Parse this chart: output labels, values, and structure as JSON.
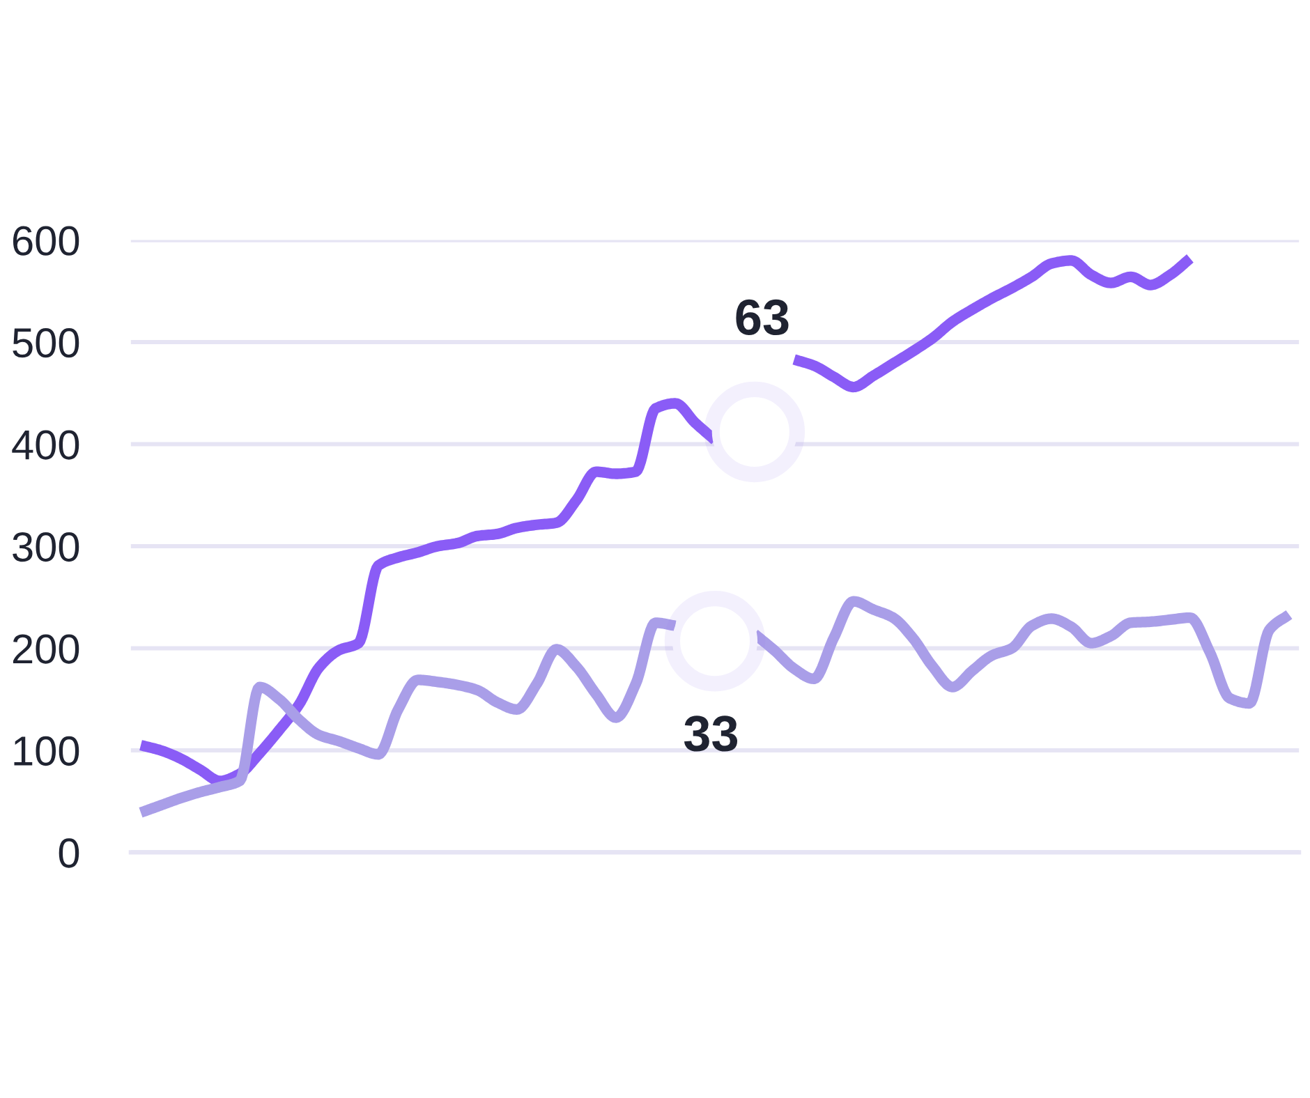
{
  "chart_data": {
    "type": "line",
    "tick_labels": "y",
    "grid": "y",
    "line_style": "solid",
    "ylim": [
      0,
      600
    ],
    "yticks": [
      0,
      100,
      200,
      300,
      400,
      500,
      600
    ],
    "categories": [
      null,
      null,
      null,
      null,
      null,
      null,
      null,
      null,
      null,
      null,
      null,
      null,
      null,
      null,
      null,
      null,
      null,
      null,
      null,
      null,
      null,
      null,
      null,
      null,
      null,
      null,
      null,
      null,
      null,
      null,
      null,
      null,
      null,
      null,
      null,
      null,
      null,
      null,
      null,
      null,
      null,
      null,
      null,
      null,
      null,
      null,
      null,
      null,
      null,
      null,
      null,
      null,
      null,
      null,
      null,
      null,
      null,
      null,
      null
    ],
    "annotations": [
      "63",
      "33"
    ],
    "series": [
      {
        "color": "#8a5cf6",
        "values": [
          105,
          100,
          92,
          81,
          70,
          77,
          97,
          120,
          145,
          181,
          198,
          205,
          281,
          289,
          294,
          300,
          303,
          310,
          312,
          318,
          321,
          323,
          345,
          373,
          371,
          373,
          435,
          440,
          421,
          404,
          null,
          null,
          null,
          483,
          477,
          466,
          456,
          467,
          479,
          491,
          504,
          520,
          532,
          543,
          553,
          564,
          577,
          580,
          566,
          558,
          564,
          556,
          566,
          582,
          null,
          null,
          null,
          null,
          null
        ]
      },
      {
        "color": "#a99ee8",
        "values": [
          39,
          46,
          53,
          59,
          64,
          70,
          162,
          150,
          130,
          115,
          109,
          102,
          96,
          140,
          169,
          167,
          164,
          159,
          147,
          140,
          165,
          199,
          182,
          155,
          132,
          165,
          225,
          222,
          null,
          null,
          null,
          214,
          198,
          180,
          170,
          210,
          246,
          238,
          230,
          210,
          182,
          162,
          178,
          193,
          200,
          222,
          229,
          221,
          205,
          212,
          225,
          226,
          228,
          230,
          196,
          151,
          146,
          218,
          233
        ]
      },
      {
        "type": "scatter",
        "color": "#ffffff",
        "marker": "circle",
        "values": [
          null,
          null,
          null,
          null,
          null,
          null,
          null,
          null,
          null,
          null,
          null,
          null,
          null,
          null,
          null,
          null,
          null,
          null,
          null,
          null,
          null,
          null,
          null,
          null,
          null,
          null,
          null,
          null,
          null,
          207,
          null,
          412,
          null,
          null,
          null,
          null,
          null,
          null,
          null,
          null,
          null,
          null,
          null,
          null,
          null,
          null,
          null,
          null,
          null,
          null,
          null,
          null,
          null,
          null,
          null,
          null,
          null,
          null,
          null
        ]
      }
    ]
  }
}
